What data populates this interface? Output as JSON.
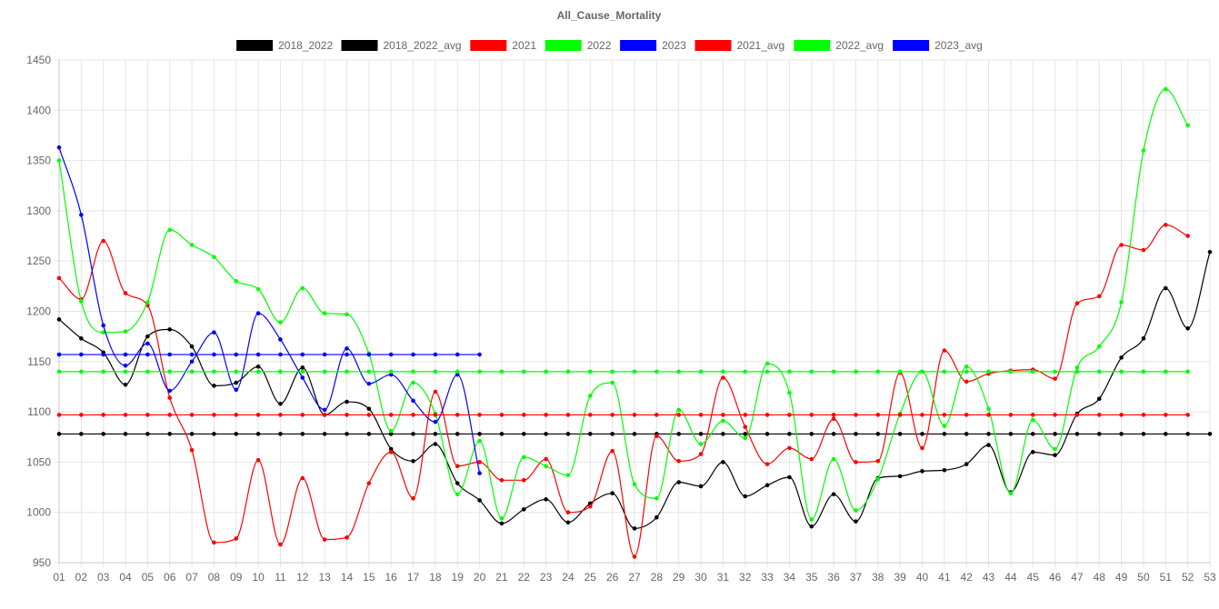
{
  "chart_data": {
    "type": "line",
    "title": "All_Cause_Mortality",
    "xlabel": "",
    "ylabel": "",
    "categories": [
      "01",
      "02",
      "03",
      "04",
      "05",
      "06",
      "07",
      "08",
      "09",
      "10",
      "11",
      "12",
      "13",
      "14",
      "15",
      "16",
      "17",
      "18",
      "19",
      "20",
      "21",
      "22",
      "23",
      "24",
      "25",
      "26",
      "27",
      "28",
      "29",
      "30",
      "31",
      "32",
      "33",
      "34",
      "35",
      "36",
      "37",
      "38",
      "39",
      "40",
      "41",
      "42",
      "43",
      "44",
      "45",
      "46",
      "47",
      "48",
      "49",
      "50",
      "51",
      "52",
      "53"
    ],
    "ylim": [
      950,
      1450
    ],
    "yticks": [
      950,
      1000,
      1050,
      1100,
      1150,
      1200,
      1250,
      1300,
      1350,
      1400,
      1450
    ],
    "grid": true,
    "legend_position": "top",
    "series": [
      {
        "name": "2018_2022",
        "color": "#000000",
        "values": [
          1192,
          1173,
          1159,
          1127,
          1175,
          1182,
          1165,
          1126,
          1129,
          1145,
          1108,
          1144,
          1097,
          1110,
          1103,
          1063,
          1051,
          1068,
          1029,
          1012,
          989,
          1003,
          1013,
          990,
          1009,
          1019,
          984,
          995,
          1030,
          1026,
          1050,
          1016,
          1027,
          1035,
          986,
          1018,
          991,
          1034,
          1036,
          1041,
          1042,
          1048,
          1067,
          1020,
          1060,
          1057,
          1098,
          1113,
          1154,
          1173,
          1223,
          1183,
          1259
        ]
      },
      {
        "name": "2018_2022_avg",
        "color": "#000000",
        "values": [
          1078,
          1078,
          1078,
          1078,
          1078,
          1078,
          1078,
          1078,
          1078,
          1078,
          1078,
          1078,
          1078,
          1078,
          1078,
          1078,
          1078,
          1078,
          1078,
          1078,
          1078,
          1078,
          1078,
          1078,
          1078,
          1078,
          1078,
          1078,
          1078,
          1078,
          1078,
          1078,
          1078,
          1078,
          1078,
          1078,
          1078,
          1078,
          1078,
          1078,
          1078,
          1078,
          1078,
          1078,
          1078,
          1078,
          1078,
          1078,
          1078,
          1078,
          1078,
          1078,
          1078
        ]
      },
      {
        "name": "2021",
        "color": "#ff0000",
        "values": [
          1233,
          1212,
          1270,
          1218,
          1206,
          1114,
          1062,
          970,
          974,
          1052,
          968,
          1034,
          973,
          975,
          1029,
          1060,
          1014,
          1120,
          1046,
          1050,
          1032,
          1032,
          1053,
          1000,
          1006,
          1061,
          956,
          1076,
          1051,
          1058,
          1134,
          1085,
          1048,
          1064,
          1053,
          1093,
          1050,
          1051,
          1139,
          1064,
          1161,
          1130,
          1138,
          1141,
          1142,
          1133,
          1208,
          1215,
          1266,
          1261,
          1286,
          1275,
          null
        ]
      },
      {
        "name": "2022",
        "color": "#00ff00",
        "values": [
          1350,
          1210,
          1179,
          1180,
          1209,
          1281,
          1266,
          1254,
          1230,
          1222,
          1189,
          1223,
          1198,
          1197,
          1158,
          1081,
          1129,
          1098,
          1018,
          1071,
          994,
          1055,
          1046,
          1037,
          1116,
          1129,
          1028,
          1014,
          1102,
          1068,
          1091,
          1074,
          1148,
          1119,
          993,
          1053,
          1002,
          1033,
          1098,
          1140,
          1086,
          1145,
          1103,
          1019,
          1092,
          1063,
          1144,
          1165,
          1209,
          1360,
          1421,
          1385,
          null
        ]
      },
      {
        "name": "2023",
        "color": "#0000ff",
        "values": [
          1363,
          1296,
          1186,
          1146,
          1168,
          1121,
          1150,
          1179,
          1122,
          1198,
          1172,
          1134,
          1102,
          1163,
          1128,
          1137,
          1111,
          1090,
          1137,
          1039,
          null,
          null,
          null,
          null,
          null,
          null,
          null,
          null,
          null,
          null,
          null,
          null,
          null,
          null,
          null,
          null,
          null,
          null,
          null,
          null,
          null,
          null,
          null,
          null,
          null,
          null,
          null,
          null,
          null,
          null,
          null,
          null,
          null
        ]
      },
      {
        "name": "2021_avg",
        "color": "#ff0000",
        "values": [
          1097,
          1097,
          1097,
          1097,
          1097,
          1097,
          1097,
          1097,
          1097,
          1097,
          1097,
          1097,
          1097,
          1097,
          1097,
          1097,
          1097,
          1097,
          1097,
          1097,
          1097,
          1097,
          1097,
          1097,
          1097,
          1097,
          1097,
          1097,
          1097,
          1097,
          1097,
          1097,
          1097,
          1097,
          1097,
          1097,
          1097,
          1097,
          1097,
          1097,
          1097,
          1097,
          1097,
          1097,
          1097,
          1097,
          1097,
          1097,
          1097,
          1097,
          1097,
          1097,
          null
        ]
      },
      {
        "name": "2022_avg",
        "color": "#00ff00",
        "values": [
          1140,
          1140,
          1140,
          1140,
          1140,
          1140,
          1140,
          1140,
          1140,
          1140,
          1140,
          1140,
          1140,
          1140,
          1140,
          1140,
          1140,
          1140,
          1140,
          1140,
          1140,
          1140,
          1140,
          1140,
          1140,
          1140,
          1140,
          1140,
          1140,
          1140,
          1140,
          1140,
          1140,
          1140,
          1140,
          1140,
          1140,
          1140,
          1140,
          1140,
          1140,
          1140,
          1140,
          1140,
          1140,
          1140,
          1140,
          1140,
          1140,
          1140,
          1140,
          1140,
          null
        ]
      },
      {
        "name": "2023_avg",
        "color": "#0000ff",
        "values": [
          1157,
          1157,
          1157,
          1157,
          1157,
          1157,
          1157,
          1157,
          1157,
          1157,
          1157,
          1157,
          1157,
          1157,
          1157,
          1157,
          1157,
          1157,
          1157,
          1157,
          null,
          null,
          null,
          null,
          null,
          null,
          null,
          null,
          null,
          null,
          null,
          null,
          null,
          null,
          null,
          null,
          null,
          null,
          null,
          null,
          null,
          null,
          null,
          null,
          null,
          null,
          null,
          null,
          null,
          null,
          null,
          null,
          null
        ]
      }
    ]
  }
}
